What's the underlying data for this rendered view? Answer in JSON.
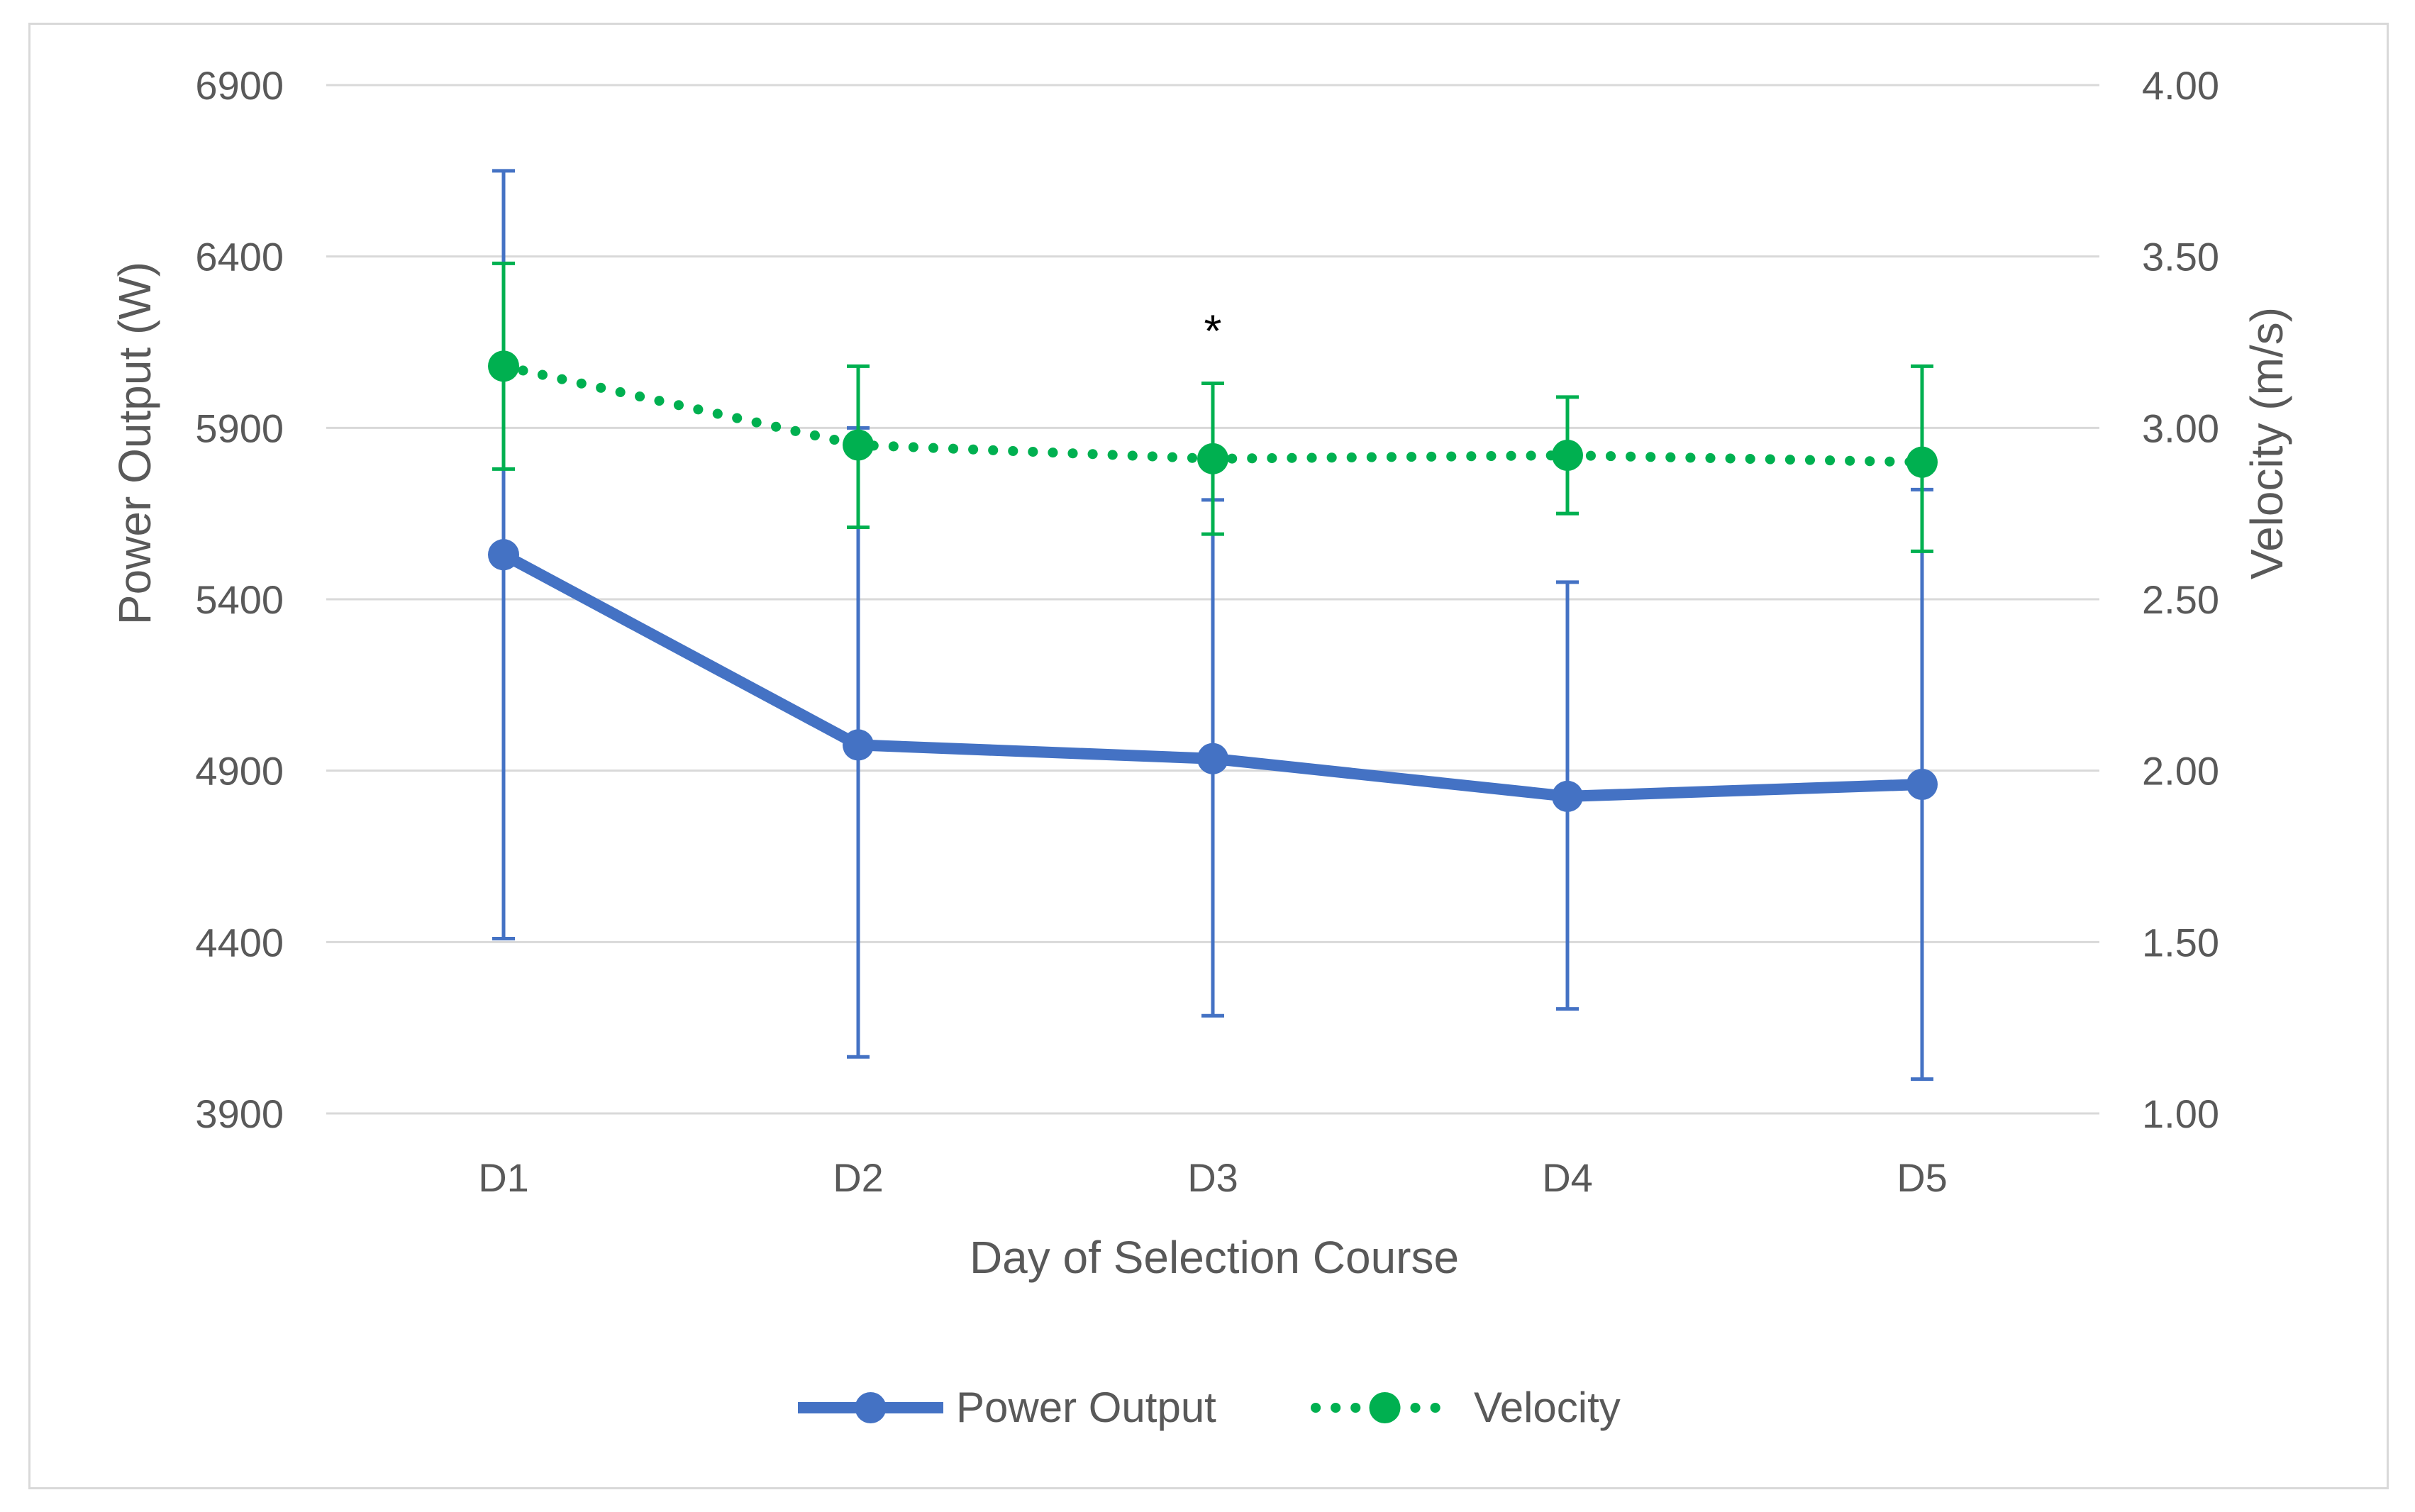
{
  "chart_data": {
    "type": "line",
    "title": "",
    "xlabel": "Day of Selection Course",
    "ylabel_left": "Power Output (W)",
    "ylabel_right": "Velocity (m/s)",
    "categories": [
      "D1",
      "D2",
      "D3",
      "D4",
      "D5"
    ],
    "ylim_left": [
      3900,
      6900
    ],
    "yticks_left": [
      "3900",
      "4400",
      "4900",
      "5400",
      "5900",
      "6400",
      "6900"
    ],
    "ylim_right": [
      1.0,
      4.0
    ],
    "yticks_right": [
      "1.00",
      "1.50",
      "2.00",
      "2.50",
      "3.00",
      "3.50",
      "4.00"
    ],
    "grid": true,
    "legend_position": "bottom",
    "series": [
      {
        "name": "Power Output",
        "axis": "left",
        "color": "#4472C4",
        "line_style": "solid",
        "values": [
          5530,
          4975,
          4935,
          4825,
          4860
        ],
        "error_low": [
          4410,
          4065,
          4185,
          4205,
          4000
        ],
        "error_high": [
          6650,
          5900,
          5690,
          5450,
          5720
        ]
      },
      {
        "name": "Velocity",
        "axis": "right",
        "color": "#00B050",
        "line_style": "dotted",
        "values": [
          3.18,
          2.95,
          2.91,
          2.92,
          2.9
        ],
        "error_low": [
          2.88,
          2.71,
          2.69,
          2.75,
          2.64
        ],
        "error_high": [
          3.48,
          3.18,
          3.13,
          3.09,
          3.18
        ]
      }
    ],
    "annotations": [
      {
        "text": "*",
        "category": "D3",
        "axis": "right",
        "y": 3.3
      }
    ]
  }
}
